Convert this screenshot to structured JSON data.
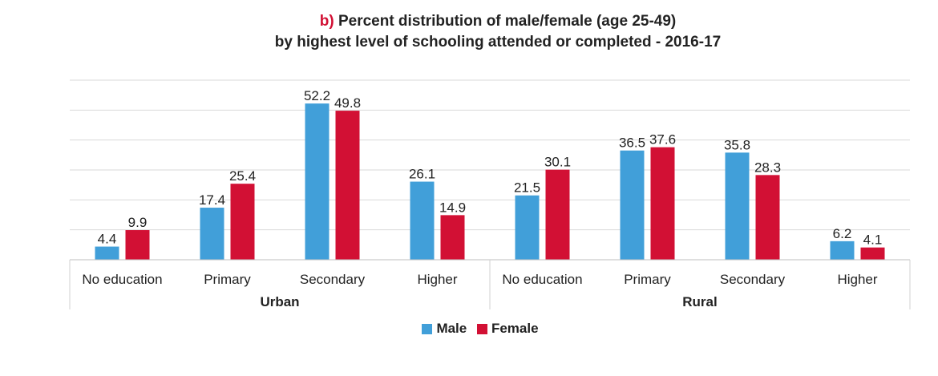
{
  "chart_data": {
    "type": "bar",
    "title_prefix": "b)",
    "title_line1": "Percent distribution of male/female (age 25-49)",
    "title_line2": "by highest level of schooling attended or completed - 2016-17",
    "groups": [
      "Urban",
      "Rural"
    ],
    "categories": [
      "No education",
      "Primary",
      "Secondary",
      "Higher",
      "No education",
      "Primary",
      "Secondary",
      "Higher"
    ],
    "series": [
      {
        "name": "Male",
        "color": "#419fd9",
        "values": [
          4.4,
          17.4,
          52.2,
          26.1,
          21.5,
          36.5,
          35.8,
          6.2
        ]
      },
      {
        "name": "Female",
        "color": "#d21034",
        "values": [
          9.9,
          25.4,
          49.8,
          14.9,
          30.1,
          37.6,
          28.3,
          4.1
        ]
      }
    ],
    "value_labels": {
      "Male": [
        "4.4",
        "17.4",
        "52.2",
        "26.1",
        "21.5",
        "36.5",
        "35.8",
        "6.2"
      ],
      "Female": [
        "9.9",
        "25.4",
        "49.8",
        "14.9",
        "30.1",
        "37.6",
        "28.3",
        "4.1"
      ]
    },
    "ylim": [
      0,
      60
    ],
    "grid": true,
    "legend_position": "bottom"
  }
}
